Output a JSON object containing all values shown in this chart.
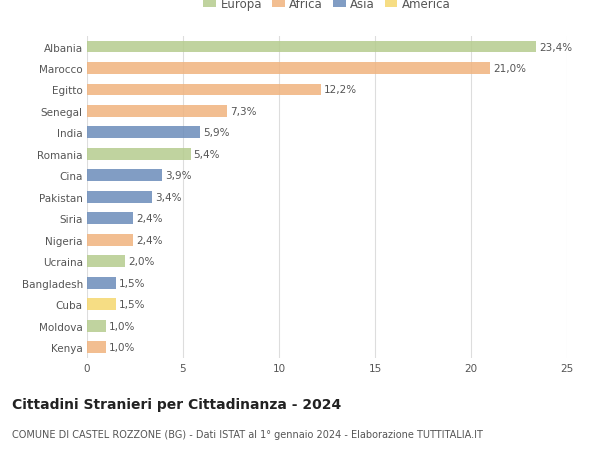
{
  "categories": [
    "Albania",
    "Marocco",
    "Egitto",
    "Senegal",
    "India",
    "Romania",
    "Cina",
    "Pakistan",
    "Siria",
    "Nigeria",
    "Ucraina",
    "Bangladesh",
    "Cuba",
    "Moldova",
    "Kenya"
  ],
  "values": [
    23.4,
    21.0,
    12.2,
    7.3,
    5.9,
    5.4,
    3.9,
    3.4,
    2.4,
    2.4,
    2.0,
    1.5,
    1.5,
    1.0,
    1.0
  ],
  "labels": [
    "23,4%",
    "21,0%",
    "12,2%",
    "7,3%",
    "5,9%",
    "5,4%",
    "3,9%",
    "3,4%",
    "2,4%",
    "2,4%",
    "2,0%",
    "1,5%",
    "1,5%",
    "1,0%",
    "1,0%"
  ],
  "continents": [
    "Europa",
    "Africa",
    "Africa",
    "Africa",
    "Asia",
    "Europa",
    "Asia",
    "Asia",
    "Asia",
    "Africa",
    "Europa",
    "Asia",
    "America",
    "Europa",
    "Africa"
  ],
  "colors": {
    "Europa": "#b5cc8e",
    "Africa": "#f0b37e",
    "Asia": "#6b8cba",
    "America": "#f5d76e"
  },
  "legend_order": [
    "Europa",
    "Africa",
    "Asia",
    "America"
  ],
  "title": "Cittadini Stranieri per Cittadinanza - 2024",
  "subtitle": "COMUNE DI CASTEL ROZZONE (BG) - Dati ISTAT al 1° gennaio 2024 - Elaborazione TUTTITALIA.IT",
  "xlim": [
    0,
    25
  ],
  "xticks": [
    0,
    5,
    10,
    15,
    20,
    25
  ],
  "background_color": "#ffffff",
  "grid_color": "#dddddd",
  "bar_height": 0.55,
  "label_fontsize": 7.5,
  "tick_fontsize": 7.5,
  "title_fontsize": 10,
  "subtitle_fontsize": 7,
  "legend_fontsize": 8.5
}
